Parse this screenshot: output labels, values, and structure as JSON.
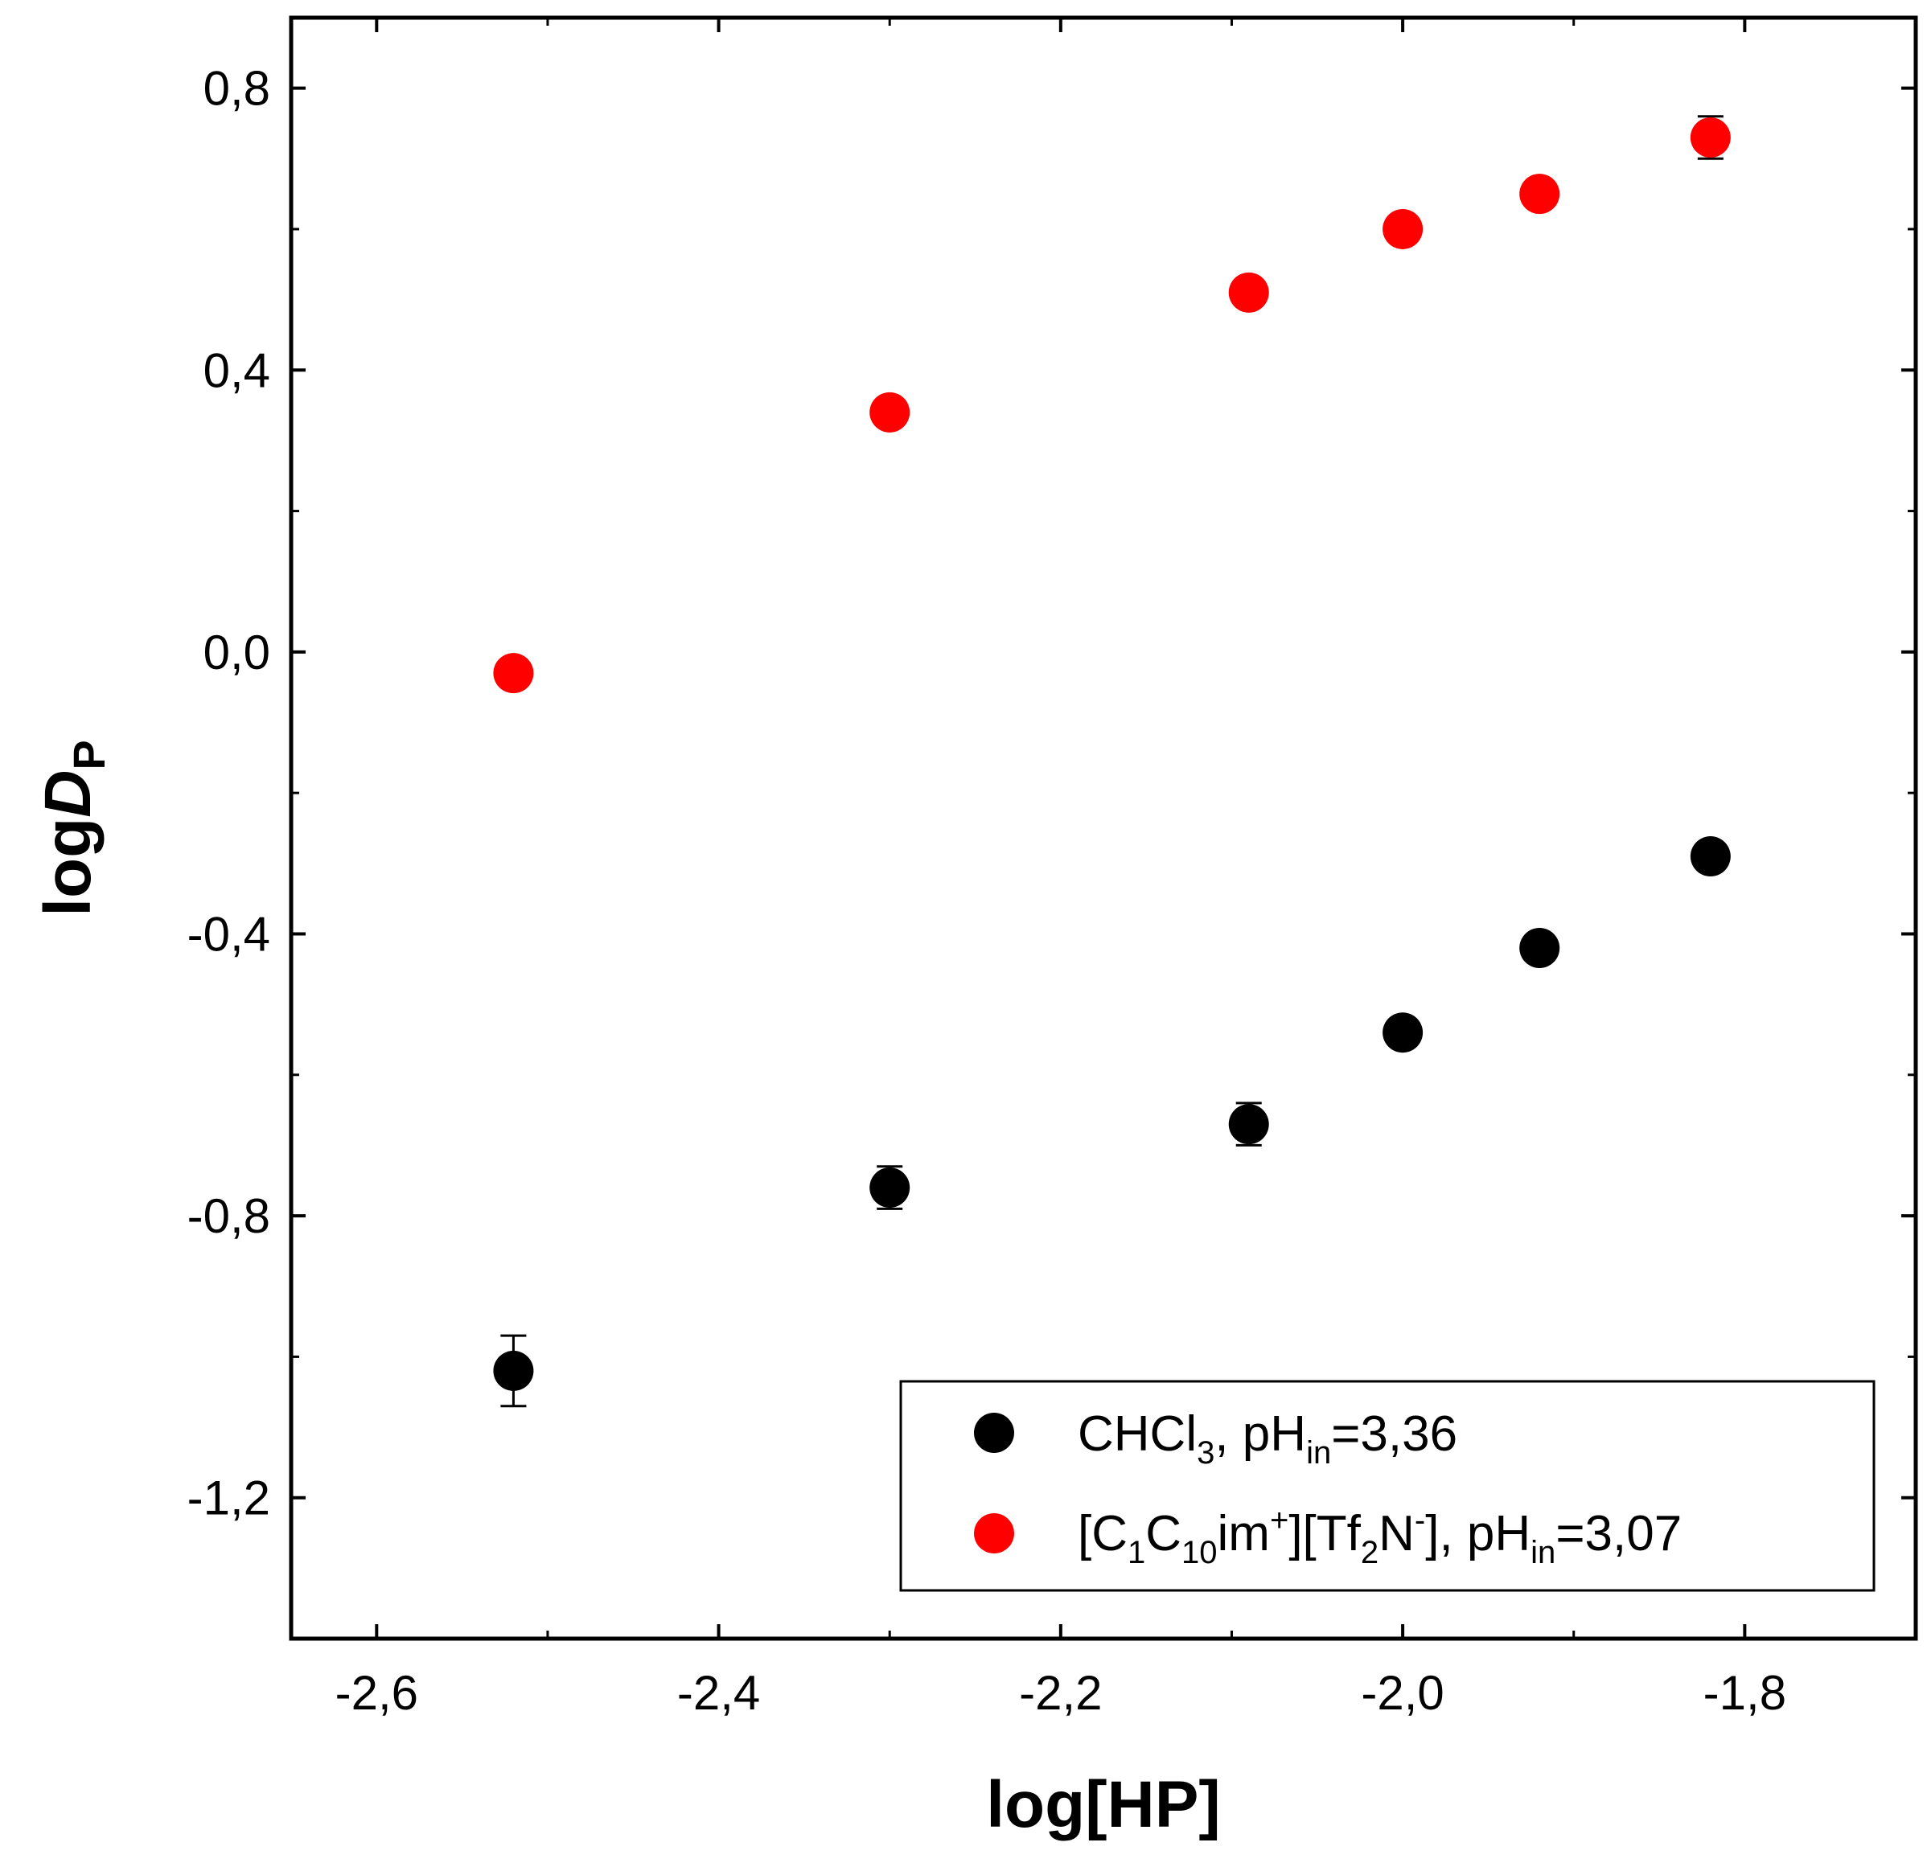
{
  "chart_data": {
    "type": "scatter",
    "title": "",
    "xlabel": "log[HP]",
    "ylabel": {
      "prefix": "log",
      "italic": "D",
      "subscript": "P"
    },
    "xlim": [
      -2.65,
      -1.7
    ],
    "ylim": [
      -1.4,
      0.9
    ],
    "x_ticks": [
      -2.6,
      -2.4,
      -2.2,
      -2.0,
      -1.8
    ],
    "x_tick_labels": [
      "-2,6",
      "-2,4",
      "-2,2",
      "-2,0",
      "-1,8"
    ],
    "y_ticks": [
      -1.2,
      -0.8,
      -0.4,
      0.0,
      0.4,
      0.8
    ],
    "y_tick_labels": [
      "-1,2",
      "-0,8",
      "-0,4",
      "0,0",
      "0,4",
      "0,8"
    ],
    "grid": false,
    "legend_position": "bottom-right",
    "series": [
      {
        "name": "CHCl3, pHin=3,36",
        "color": "#000000",
        "legend_parts": [
          {
            "text": "CHCl",
            "style": "normal"
          },
          {
            "text": "3",
            "style": "sub"
          },
          {
            "text": ", pH",
            "style": "normal"
          },
          {
            "text": "in",
            "style": "sub"
          },
          {
            "text": "=3,36",
            "style": "normal"
          }
        ],
        "points": [
          {
            "x": -2.52,
            "y": -1.02,
            "err": 0.05
          },
          {
            "x": -2.3,
            "y": -0.76,
            "err": 0.03
          },
          {
            "x": -2.09,
            "y": -0.67,
            "err": 0.03
          },
          {
            "x": -2.0,
            "y": -0.54,
            "err": 0.02
          },
          {
            "x": -1.92,
            "y": -0.42,
            "err": 0.02
          },
          {
            "x": -1.82,
            "y": -0.29,
            "err": 0.01
          }
        ]
      },
      {
        "name": "[C1C10im+][Tf2N-], pHin=3,07",
        "color": "#ff0000",
        "legend_parts": [
          {
            "text": "[C",
            "style": "normal"
          },
          {
            "text": "1",
            "style": "sub"
          },
          {
            "text": "C",
            "style": "normal"
          },
          {
            "text": "10",
            "style": "sub"
          },
          {
            "text": "im",
            "style": "normal"
          },
          {
            "text": "+",
            "style": "sup"
          },
          {
            "text": "][Tf",
            "style": "normal"
          },
          {
            "text": "2",
            "style": "sub"
          },
          {
            "text": "N",
            "style": "normal"
          },
          {
            "text": "-",
            "style": "sup"
          },
          {
            "text": "], pH",
            "style": "normal"
          },
          {
            "text": "in",
            "style": "sub"
          },
          {
            "text": "=3,07",
            "style": "normal"
          }
        ],
        "points": [
          {
            "x": -2.52,
            "y": -0.03,
            "err": 0.01
          },
          {
            "x": -2.3,
            "y": 0.34,
            "err": 0.01
          },
          {
            "x": -2.09,
            "y": 0.51,
            "err": 0.01
          },
          {
            "x": -2.0,
            "y": 0.6,
            "err": 0.02
          },
          {
            "x": -1.92,
            "y": 0.65,
            "err": 0.02
          },
          {
            "x": -1.82,
            "y": 0.73,
            "err": 0.03
          }
        ]
      }
    ]
  }
}
